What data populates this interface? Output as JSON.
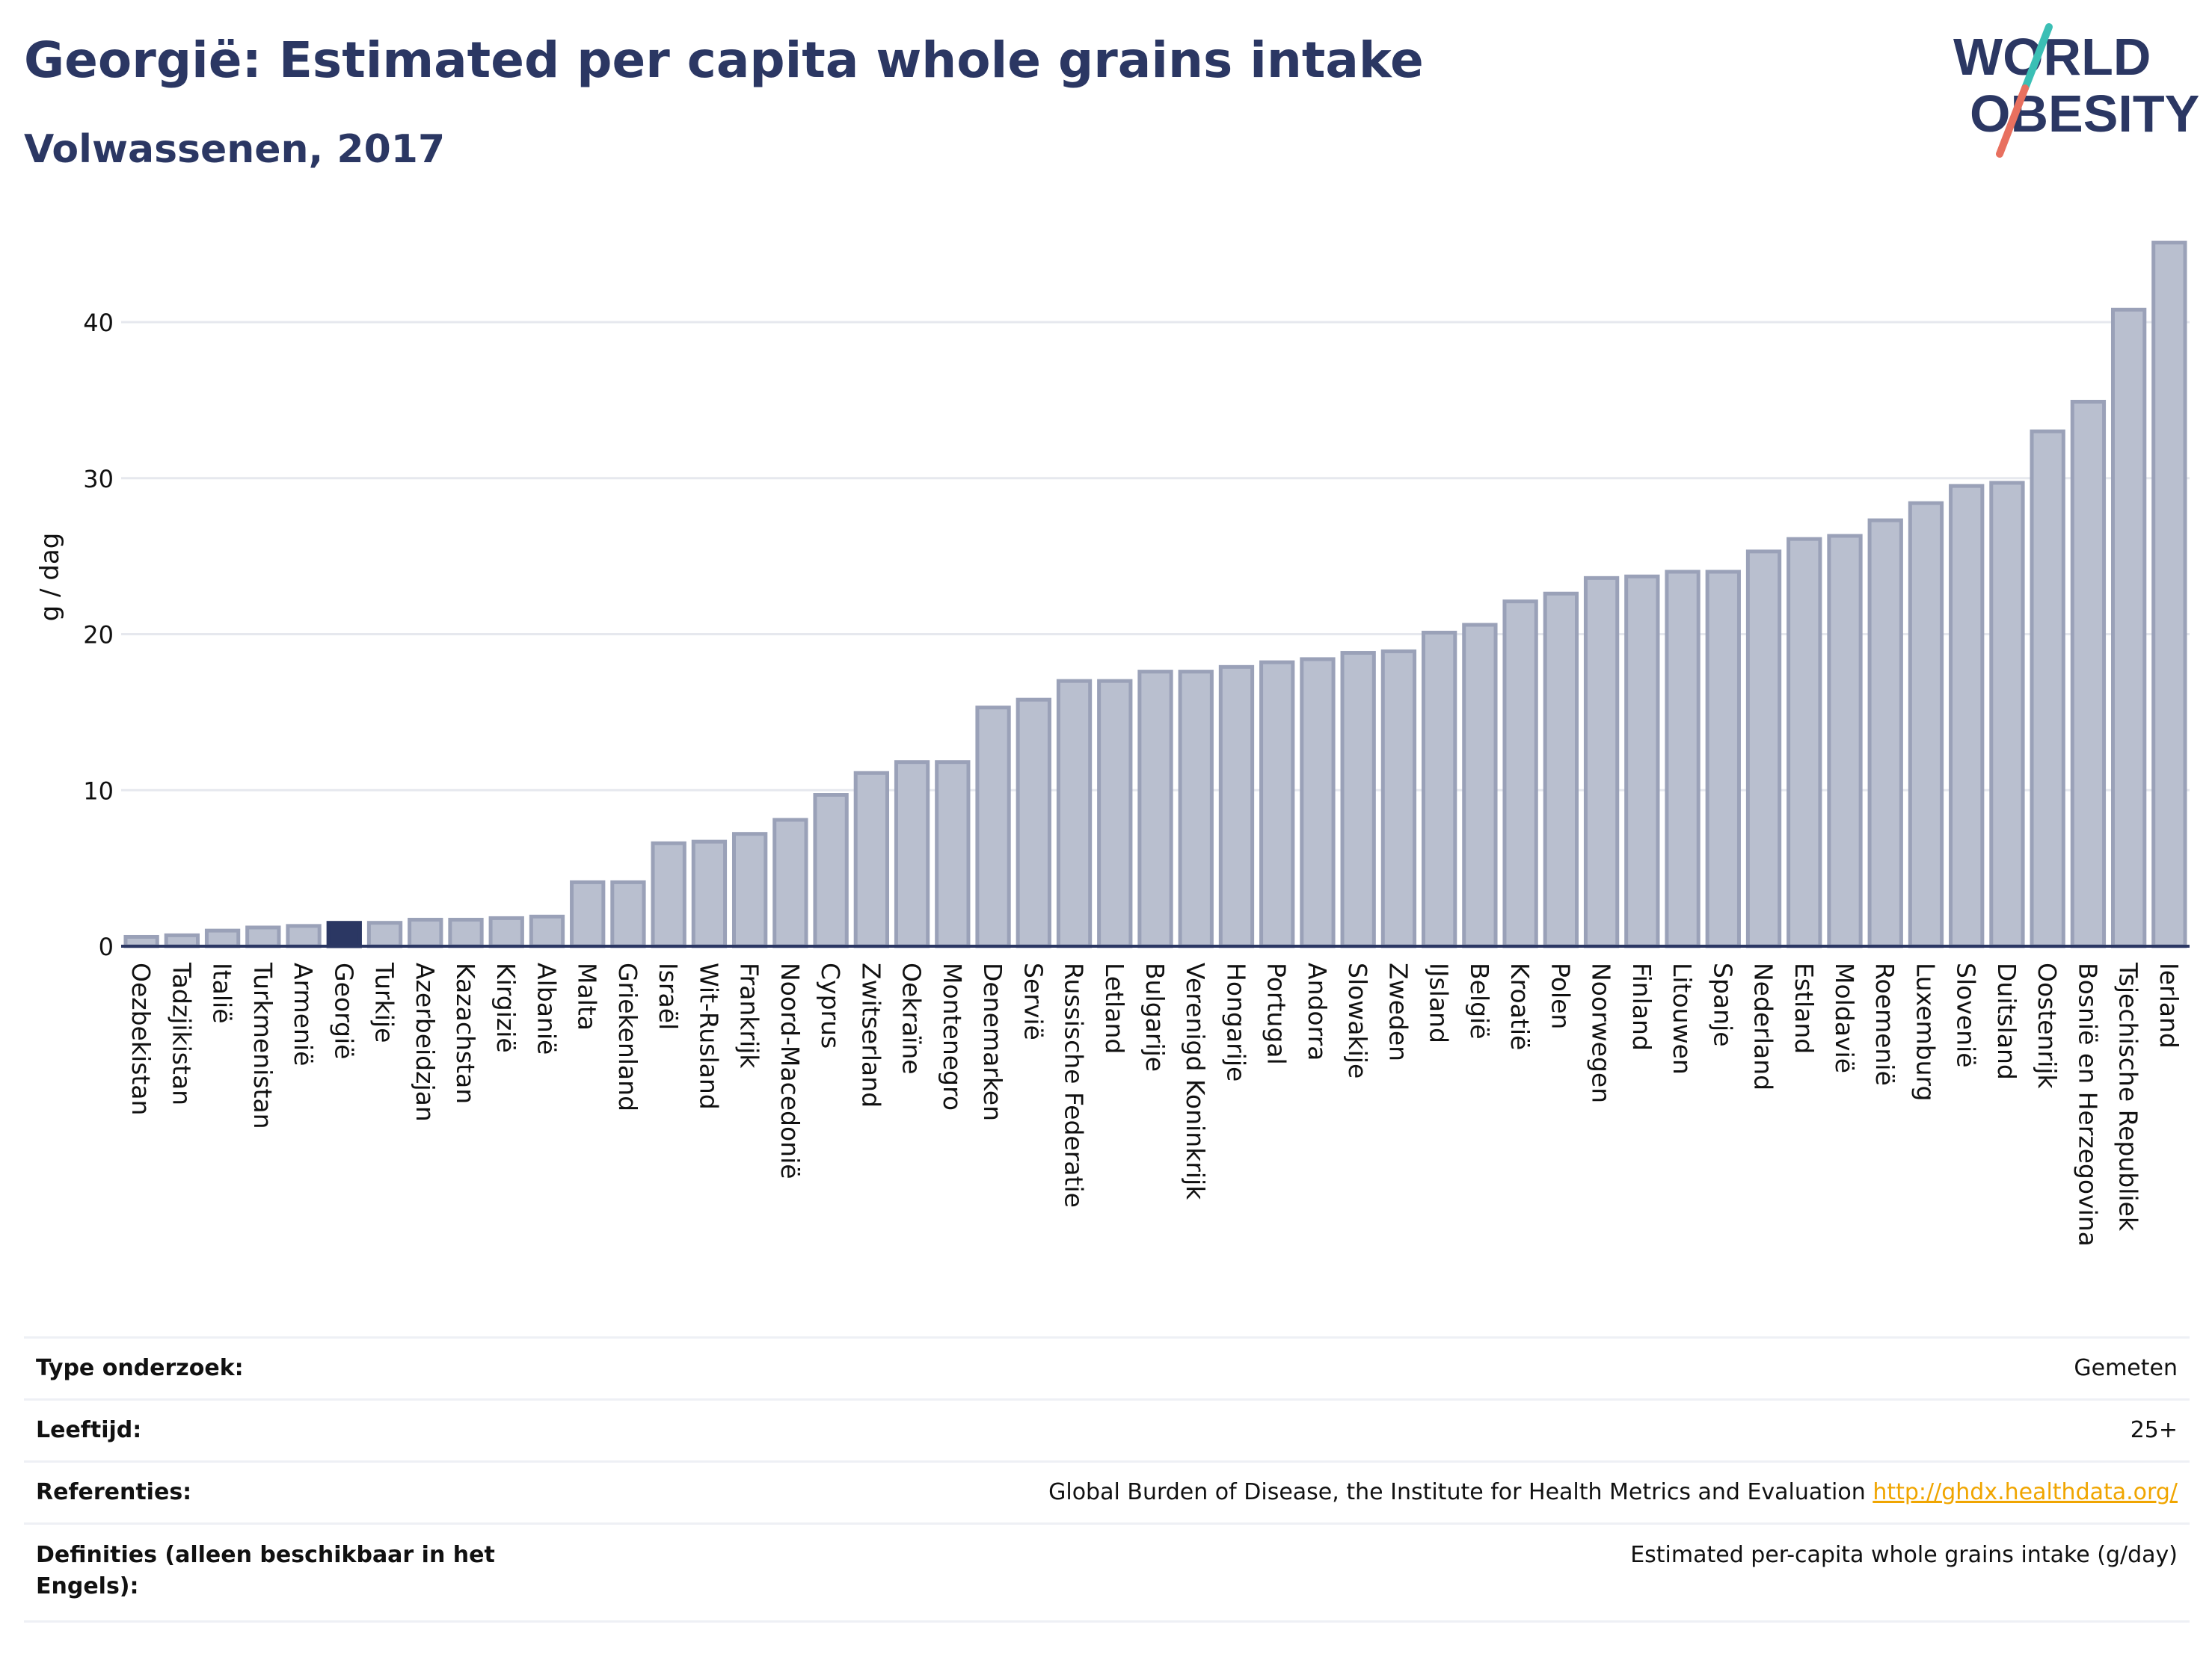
{
  "header": {
    "title": "Georgië: Estimated per capita whole grains intake",
    "subtitle": "Volwassenen, 2017"
  },
  "logo": {
    "line1": "WORLD",
    "line2": "OBESITY",
    "colors": {
      "text": "#2b3763",
      "slash_top": "#3bbfb5",
      "slash_bottom": "#e8705f"
    }
  },
  "chart_data": {
    "type": "bar",
    "ylabel": "g / dag",
    "ylim": [
      0,
      46
    ],
    "yticks": [
      0,
      10,
      20,
      30,
      40
    ],
    "grid": true,
    "highlight": "Georgië",
    "colors": {
      "bar": "#b9bfcf",
      "bar_edge": "#9aa1b8",
      "highlight": "#2b3763",
      "axis": "#2b3763",
      "grid": "#e6e8ee"
    },
    "categories": [
      "Oezbekistan",
      "Tadzjikistan",
      "Italië",
      "Turkmenistan",
      "Armenië",
      "Georgië",
      "Turkije",
      "Azerbeidzjan",
      "Kazachstan",
      "Kirgizië",
      "Albanië",
      "Malta",
      "Griekenland",
      "Israël",
      "Wit-Rusland",
      "Frankrijk",
      "Noord-Macedonië",
      "Cyprus",
      "Zwitserland",
      "Oekraïne",
      "Montenegro",
      "Denemarken",
      "Servië",
      "Russische Federatie",
      "Letland",
      "Bulgarije",
      "Verenigd Koninkrijk",
      "Hongarije",
      "Portugal",
      "Andorra",
      "Slowakije",
      "Zweden",
      "IJsland",
      "België",
      "Kroatië",
      "Polen",
      "Noorwegen",
      "Finland",
      "Litouwen",
      "Spanje",
      "Nederland",
      "Estland",
      "Moldavië",
      "Roemenië",
      "Luxemburg",
      "Slovenië",
      "Duitsland",
      "Oostenrijk",
      "Bosnië en Herzegovina",
      "Tsjechische Republiek",
      "Ierland"
    ],
    "values": [
      0.6,
      0.7,
      1.0,
      1.2,
      1.3,
      1.5,
      1.5,
      1.7,
      1.7,
      1.8,
      1.9,
      4.1,
      4.1,
      6.6,
      6.7,
      7.2,
      8.1,
      9.7,
      11.1,
      11.8,
      11.8,
      15.3,
      15.8,
      17.0,
      17.0,
      17.6,
      17.6,
      17.9,
      18.2,
      18.4,
      18.8,
      18.9,
      20.1,
      20.6,
      22.1,
      22.6,
      23.6,
      23.7,
      24.0,
      24.0,
      25.3,
      26.1,
      26.3,
      27.3,
      28.4,
      29.5,
      29.7,
      33.0,
      34.9,
      40.8,
      45.1
    ]
  },
  "meta": {
    "rows": [
      {
        "label": "Type onderzoek:",
        "value": "Gemeten"
      },
      {
        "label": "Leeftijd:",
        "value": "25+"
      },
      {
        "label": "Referenties:",
        "value": "Global Burden of Disease, the Institute for Health Metrics and Evaluation",
        "link": "http://ghdx.healthdata.org/"
      },
      {
        "label": "Definities (alleen beschikbaar in het Engels):",
        "value": "Estimated per-capita whole grains intake (g/day)"
      }
    ]
  }
}
